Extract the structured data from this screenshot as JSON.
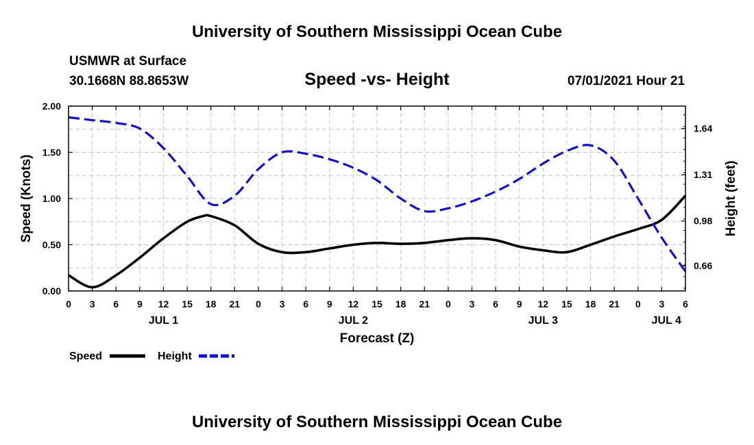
{
  "header": {
    "title_top": "University of Southern Mississippi Ocean Cube",
    "station": "USMWR at Surface",
    "coords": "30.1668N  88.8653W",
    "chart_title": "Speed -vs- Height",
    "datetime": "07/01/2021 Hour 21",
    "title_bottom": "University of Southern Mississippi Ocean Cube"
  },
  "chart_data": {
    "type": "line",
    "title": "Speed -vs- Height",
    "xlabel": "Forecast (Z)",
    "ylabel_left": "Speed (Knots)",
    "ylabel_right": "Height (feet)",
    "x_unit": "hours from 07/01 00Z",
    "xlim": [
      0,
      78
    ],
    "ylim_left": [
      0,
      2.0
    ],
    "ylim_right": [
      0.48,
      1.8
    ],
    "grid": true,
    "x_ticks": [
      0,
      3,
      6,
      9,
      12,
      15,
      18,
      21,
      24,
      27,
      30,
      33,
      36,
      39,
      42,
      45,
      48,
      51,
      54,
      57,
      60,
      63,
      66,
      69,
      72,
      75,
      78
    ],
    "x_tick_labels": [
      "0",
      "3",
      "6",
      "9",
      "12",
      "15",
      "18",
      "21",
      "0",
      "3",
      "6",
      "9",
      "12",
      "15",
      "18",
      "21",
      "0",
      "3",
      "6",
      "9",
      "12",
      "15",
      "18",
      "21",
      "0",
      "3",
      "6"
    ],
    "day_labels": [
      {
        "x": 12,
        "label": "JUL 1"
      },
      {
        "x": 36,
        "label": "JUL 2"
      },
      {
        "x": 60,
        "label": "JUL 3"
      },
      {
        "x": 75.6,
        "label": "JUL 4"
      }
    ],
    "y_left_ticks": [
      0,
      0.5,
      1.0,
      1.5,
      2.0
    ],
    "y_left_labels": [
      "0.00",
      "0.50",
      "1.00",
      "1.50",
      "2.00"
    ],
    "y_right_ticks": [
      0.66,
      0.98,
      1.31,
      1.64
    ],
    "y_right_labels": [
      "0.66",
      "0.98",
      "1.31",
      "1.64"
    ],
    "series": [
      {
        "name": "Speed",
        "axis": "left",
        "color": "#000000",
        "dash": false,
        "x": [
          0,
          3,
          6,
          9,
          12,
          15,
          17,
          18,
          21,
          24,
          27,
          30,
          33,
          36,
          39,
          42,
          45,
          48,
          51,
          54,
          57,
          60,
          63,
          66,
          69,
          72,
          75,
          78
        ],
        "values": [
          0.17,
          0.04,
          0.17,
          0.36,
          0.57,
          0.75,
          0.81,
          0.81,
          0.71,
          0.51,
          0.42,
          0.42,
          0.46,
          0.5,
          0.52,
          0.51,
          0.52,
          0.55,
          0.57,
          0.55,
          0.48,
          0.44,
          0.42,
          0.5,
          0.59,
          0.67,
          0.77,
          1.03
        ]
      },
      {
        "name": "Height",
        "axis": "right",
        "color": "#1010cc",
        "dash": true,
        "x": [
          0,
          3,
          6,
          9,
          12,
          15,
          18,
          21,
          24,
          27,
          30,
          33,
          36,
          39,
          42,
          45,
          48,
          51,
          54,
          57,
          60,
          63,
          66,
          69,
          72,
          75,
          78
        ],
        "values": [
          1.72,
          1.7,
          1.68,
          1.64,
          1.5,
          1.3,
          1.1,
          1.16,
          1.35,
          1.47,
          1.46,
          1.42,
          1.36,
          1.27,
          1.14,
          1.05,
          1.07,
          1.12,
          1.19,
          1.28,
          1.39,
          1.48,
          1.52,
          1.41,
          1.14,
          0.86,
          0.62
        ]
      }
    ]
  },
  "legend": {
    "speed_label": "Speed",
    "height_label": "Height",
    "speed_color": "#000000",
    "height_color": "#1010cc"
  }
}
